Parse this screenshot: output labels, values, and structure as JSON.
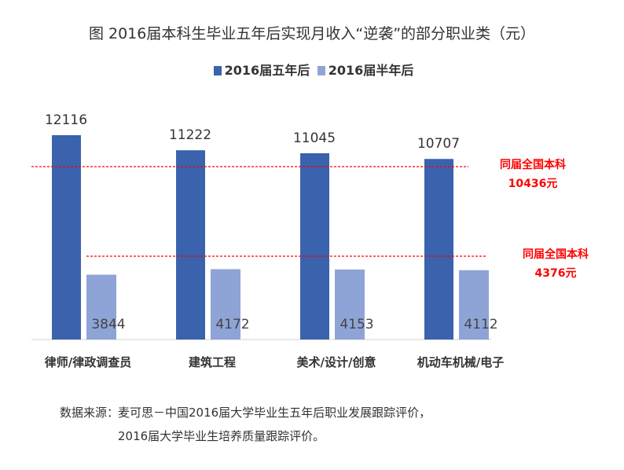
{
  "title": "图  2016届本科生毕业五年后实现月收入“逆袭”的部分职业类（元）",
  "source_label": "数据来源：",
  "source_lines": [
    "麦可思－中国2016届大学毕业生五年后职业发展跟踪评价，",
    "2016届大学毕业生培养质量跟踪评价。"
  ],
  "chart_data": {
    "type": "bar",
    "title": "图  2016届本科生毕业五年后实现月收入“逆袭”的部分职业类（元）",
    "categories": [
      "律师/律政调查员",
      "建筑工程",
      "美术/设计/创意",
      "机动车机械/电子"
    ],
    "series": [
      {
        "name": "2016届五年后",
        "color": "#3a62ad",
        "values": [
          12116,
          11222,
          11045,
          10707
        ]
      },
      {
        "name": "2016届半年后",
        "color": "#8fa4d6",
        "values": [
          3844,
          4172,
          4153,
          4112
        ]
      }
    ],
    "reference_lines": [
      {
        "label": "同届全国本科",
        "value": 10436,
        "value_label": "10436元",
        "color": "#ff0000"
      },
      {
        "label": "同届全国本科",
        "value": 4376,
        "value_label": "4376元",
        "color": "#ff0000"
      }
    ],
    "legend_position": "top",
    "ylim": [
      0,
      12116
    ],
    "grid": false
  }
}
